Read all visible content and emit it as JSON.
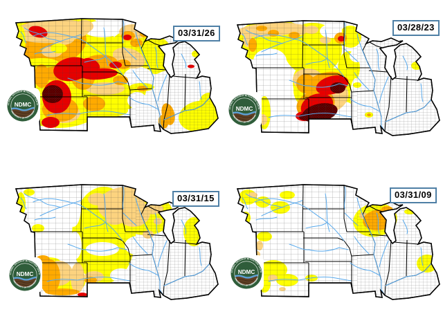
{
  "colors": {
    "D0": "#FFFF00",
    "D1": "#FCD37F",
    "D2": "#FFAA00",
    "D3": "#E60000",
    "D4": "#730000",
    "W": "#FFFFFF",
    "river": "#58A9EC",
    "county_line": "#3C3C3C",
    "state_line": "#000000",
    "date_border": "#4E7FA5",
    "date_text": "#000000",
    "logo_green": "#2F5D3A",
    "logo_brown": "#5F3F24",
    "logo_wave": "#5D9FD3"
  },
  "logo": {
    "acronym": "NDMC",
    "ring_top": "NATIONAL DROUGHT MITIGATION CENTER",
    "ring_bottom": "UNIVERSITY OF NEBRASKA"
  },
  "panels": [
    {
      "date": "03/31/26",
      "patches": [
        [
          "D0",
          85,
          100,
          95,
          85,
          0
        ],
        [
          "D0",
          150,
          122,
          62,
          40,
          8
        ],
        [
          "D0",
          196,
          70,
          38,
          28,
          0
        ],
        [
          "D0",
          225,
          80,
          24,
          27,
          0
        ],
        [
          "W",
          148,
          42,
          28,
          12,
          0
        ],
        [
          "W",
          200,
          112,
          22,
          15,
          0
        ],
        [
          "W",
          250,
          130,
          38,
          29,
          0
        ],
        [
          "W",
          265,
          90,
          27,
          27,
          0
        ],
        [
          "W",
          40,
          68,
          5,
          8,
          0
        ],
        [
          "W",
          198,
          145,
          14,
          12,
          0
        ],
        [
          "D0",
          150,
          160,
          35,
          10,
          0
        ],
        [
          "D0",
          283,
          78,
          6,
          5,
          0
        ],
        [
          "D0",
          288,
          168,
          30,
          22,
          -10
        ],
        [
          "D0",
          302,
          148,
          14,
          14,
          0
        ],
        [
          "D0",
          205,
          126,
          18,
          6,
          0
        ],
        [
          "D2",
          70,
          60,
          55,
          35,
          -5
        ],
        [
          "D2",
          85,
          105,
          30,
          12,
          0
        ],
        [
          "D1",
          75,
          45,
          55,
          17,
          -3
        ],
        [
          "D1",
          55,
          45,
          15,
          8,
          0
        ],
        [
          "D1",
          90,
          55,
          18,
          10,
          0
        ],
        [
          "D1",
          75,
          75,
          15,
          8,
          0
        ],
        [
          "D1",
          122,
          38,
          13,
          9,
          0
        ],
        [
          "D1",
          186,
          84,
          24,
          14,
          18
        ],
        [
          "D1",
          192,
          46,
          20,
          11,
          0
        ],
        [
          "D1",
          152,
          128,
          28,
          9,
          0
        ],
        [
          "D1",
          92,
          164,
          24,
          14,
          0
        ],
        [
          "D0",
          30,
          60,
          7,
          22,
          0
        ],
        [
          "D0",
          60,
          91,
          25,
          7,
          0
        ],
        [
          "D0",
          85,
          70,
          12,
          7,
          0
        ],
        [
          "D2",
          60,
          110,
          11,
          17,
          0
        ],
        [
          "D2",
          120,
          108,
          18,
          22,
          0
        ],
        [
          "D2",
          146,
          90,
          24,
          11,
          0
        ],
        [
          "D2",
          178,
          93,
          11,
          7,
          0
        ],
        [
          "D2",
          174,
          116,
          11,
          7,
          0
        ],
        [
          "D2",
          136,
          150,
          16,
          11,
          0
        ],
        [
          "D2",
          87,
          158,
          26,
          18,
          0
        ],
        [
          "D2",
          197,
          62,
          9,
          6,
          0
        ],
        [
          "D2",
          209,
          49,
          7,
          5,
          0
        ],
        [
          "D2",
          185,
          52,
          10,
          7,
          0
        ],
        [
          "D2",
          206,
          128,
          8,
          4,
          0
        ],
        [
          "D2",
          243,
          165,
          9,
          16,
          -15
        ],
        [
          "D2",
          236,
          176,
          7,
          10,
          -10
        ],
        [
          "D3",
          55,
          46,
          14,
          8,
          15
        ],
        [
          "D3",
          184,
          54,
          6,
          4,
          0
        ],
        [
          "D3",
          104,
          100,
          27,
          17,
          -10
        ],
        [
          "D3",
          143,
          107,
          27,
          8,
          -4
        ],
        [
          "D3",
          131,
          94,
          14,
          9,
          25
        ],
        [
          "D3",
          167,
          94,
          9,
          5,
          0
        ],
        [
          "D3",
          82,
          140,
          21,
          24,
          0
        ],
        [
          "D3",
          73,
          177,
          13,
          8,
          0
        ],
        [
          "D3",
          276,
          96,
          5,
          2.5,
          0
        ],
        [
          "D4",
          76,
          136,
          15,
          13,
          0
        ]
      ]
    },
    {
      "date": "03/28/23",
      "patches": [
        [
          "D0",
          70,
          55,
          52,
          30,
          -5
        ],
        [
          "D0",
          132,
          68,
          42,
          38,
          0
        ],
        [
          "D0",
          150,
          128,
          46,
          34,
          0
        ],
        [
          "D0",
          186,
          50,
          16,
          16,
          0
        ],
        [
          "D0",
          184,
          95,
          16,
          24,
          0
        ],
        [
          "D0",
          112,
          116,
          9,
          20,
          0
        ],
        [
          "D0",
          62,
          160,
          9,
          24,
          0
        ],
        [
          "W",
          70,
          85,
          24,
          18,
          0
        ],
        [
          "W",
          158,
          42,
          16,
          10,
          0
        ],
        [
          "W",
          196,
          78,
          11,
          9,
          0
        ],
        [
          "W",
          178,
          155,
          13,
          11,
          0
        ],
        [
          "W",
          194,
          135,
          8,
          25,
          0
        ],
        [
          "D0",
          282,
          92,
          8,
          6,
          0
        ],
        [
          "D0",
          196,
          120,
          6,
          4,
          0
        ],
        [
          "D0",
          213,
          163,
          6,
          4,
          0
        ],
        [
          "D1",
          70,
          40,
          48,
          10,
          -4
        ],
        [
          "D1",
          112,
          40,
          12,
          8,
          0
        ],
        [
          "D1",
          130,
          40,
          10,
          6,
          0
        ],
        [
          "D1",
          150,
          55,
          8,
          5,
          0
        ],
        [
          "D1",
          125,
          112,
          22,
          16,
          0
        ],
        [
          "D1",
          150,
          138,
          34,
          24,
          -15
        ],
        [
          "D1",
          38,
          56,
          7,
          9,
          0
        ],
        [
          "D1",
          60,
          170,
          6,
          8,
          0
        ],
        [
          "D2",
          58,
          38,
          8,
          4,
          0
        ],
        [
          "D2",
          75,
          45,
          8,
          5,
          0
        ],
        [
          "D2",
          105,
          48,
          8,
          5,
          0
        ],
        [
          "D2",
          45,
          62,
          6,
          10,
          0
        ],
        [
          "D2",
          122,
          118,
          14,
          14,
          0
        ],
        [
          "D2",
          150,
          118,
          30,
          16,
          -15
        ],
        [
          "D2",
          136,
          148,
          28,
          20,
          -15
        ],
        [
          "D2",
          172,
          52,
          9,
          8,
          0
        ],
        [
          "D2",
          213,
          163,
          3,
          2,
          0
        ],
        [
          "D3",
          160,
          120,
          24,
          13,
          -15
        ],
        [
          "D3",
          138,
          150,
          24,
          17,
          -20
        ],
        [
          "D3",
          120,
          165,
          13,
          7,
          0
        ],
        [
          "D3",
          173,
          53,
          5,
          4,
          0
        ],
        [
          "D4",
          168,
          124,
          11,
          8,
          0
        ],
        [
          "D4",
          142,
          160,
          26,
          13,
          -12
        ],
        [
          "D4",
          120,
          166,
          8,
          5,
          0
        ]
      ]
    },
    {
      "date": "03/31/15",
      "patches": [
        [
          "D0",
          150,
          100,
          46,
          70,
          0
        ],
        [
          "D0",
          210,
          70,
          40,
          30,
          0
        ],
        [
          "D0",
          280,
          95,
          15,
          21,
          0
        ],
        [
          "D0",
          235,
          62,
          12,
          5,
          0
        ],
        [
          "D0",
          90,
          165,
          34,
          22,
          0
        ],
        [
          "D0",
          30,
          55,
          7,
          17,
          0
        ],
        [
          "D0",
          55,
          90,
          9,
          6,
          0
        ],
        [
          "D0",
          42,
          38,
          8,
          5,
          0
        ],
        [
          "D0",
          70,
          138,
          17,
          6,
          0
        ],
        [
          "W",
          106,
          60,
          11,
          28,
          0
        ],
        [
          "W",
          108,
          115,
          10,
          20,
          0
        ],
        [
          "W",
          148,
          120,
          24,
          10,
          0
        ],
        [
          "W",
          200,
          115,
          20,
          14,
          0
        ],
        [
          "W",
          175,
          158,
          16,
          10,
          0
        ],
        [
          "W",
          95,
          152,
          12,
          12,
          0
        ],
        [
          "D1",
          175,
          55,
          34,
          24,
          -10
        ],
        [
          "D1",
          193,
          68,
          24,
          20,
          0
        ],
        [
          "D1",
          222,
          62,
          14,
          8,
          0
        ],
        [
          "D1",
          228,
          80,
          6,
          5,
          0
        ],
        [
          "D1",
          166,
          76,
          14,
          9,
          0
        ],
        [
          "D1",
          141,
          48,
          14,
          9,
          0
        ],
        [
          "D1",
          214,
          99,
          8,
          6,
          0
        ],
        [
          "D1",
          85,
          155,
          20,
          18,
          0
        ],
        [
          "D1",
          112,
          162,
          10,
          22,
          0
        ],
        [
          "D1",
          136,
          160,
          14,
          8,
          0
        ],
        [
          "D2",
          72,
          160,
          15,
          25,
          0
        ],
        [
          "D2",
          90,
          182,
          25,
          5,
          0
        ],
        [
          "D2",
          62,
          135,
          10,
          6,
          0
        ],
        [
          "D2",
          131,
          165,
          9,
          5,
          0
        ],
        [
          "D3",
          119,
          186,
          7,
          3,
          0
        ],
        [
          "D3",
          129,
          184,
          4,
          2,
          0
        ]
      ]
    },
    {
      "date": "03/31/09",
      "patches": [
        [
          "D0",
          38,
          45,
          13,
          11,
          0
        ],
        [
          "D0",
          60,
          52,
          11,
          8,
          0
        ],
        [
          "D0",
          85,
          60,
          14,
          9,
          0
        ],
        [
          "D0",
          35,
          75,
          7,
          9,
          0
        ],
        [
          "D0",
          95,
          42,
          11,
          6,
          0
        ],
        [
          "D0",
          62,
          102,
          11,
          7,
          0
        ],
        [
          "D0",
          75,
          150,
          20,
          14,
          0
        ],
        [
          "D0",
          95,
          165,
          16,
          9,
          0
        ],
        [
          "D0",
          62,
          170,
          9,
          13,
          0
        ],
        [
          "D0",
          130,
          162,
          9,
          5,
          0
        ],
        [
          "D0",
          222,
          78,
          32,
          24,
          -10
        ],
        [
          "D0",
          272,
          66,
          8,
          4,
          0
        ],
        [
          "D0",
          297,
          141,
          15,
          13,
          0
        ],
        [
          "D1",
          45,
          42,
          7,
          4,
          0
        ],
        [
          "D1",
          55,
          115,
          5,
          7,
          0
        ],
        [
          "D1",
          74,
          162,
          7,
          5,
          0
        ],
        [
          "D1",
          88,
          178,
          5,
          3,
          0
        ],
        [
          "D1",
          52,
          128,
          4,
          5,
          0
        ],
        [
          "D1",
          205,
          72,
          6,
          5,
          0
        ],
        [
          "D2",
          227,
          78,
          23,
          15,
          -8
        ],
        [
          "D2",
          239,
          62,
          8,
          4,
          0
        ]
      ]
    }
  ]
}
